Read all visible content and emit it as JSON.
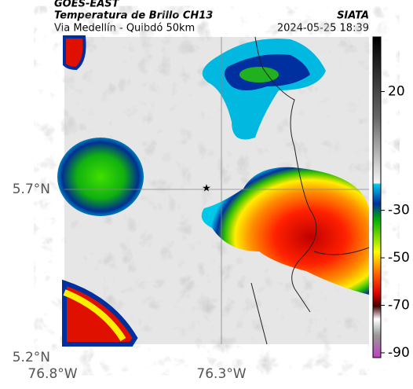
{
  "header": {
    "satellite": "GOES-EAST",
    "product": "Temperatura de Brillo CH13",
    "route": "Via Medellín - Quibdó 50km",
    "source": "SIATA",
    "datetime": "2024-05-25 18:39"
  },
  "axes": {
    "x_ticks": [
      "76.8°W",
      "76.3°W"
    ],
    "y_ticks": [
      "5.7°N",
      "5.2°N"
    ]
  },
  "colorbar": {
    "lim": [
      -92,
      43
    ],
    "ticks": [
      20,
      -30,
      -50,
      -70,
      -90
    ]
  }
}
